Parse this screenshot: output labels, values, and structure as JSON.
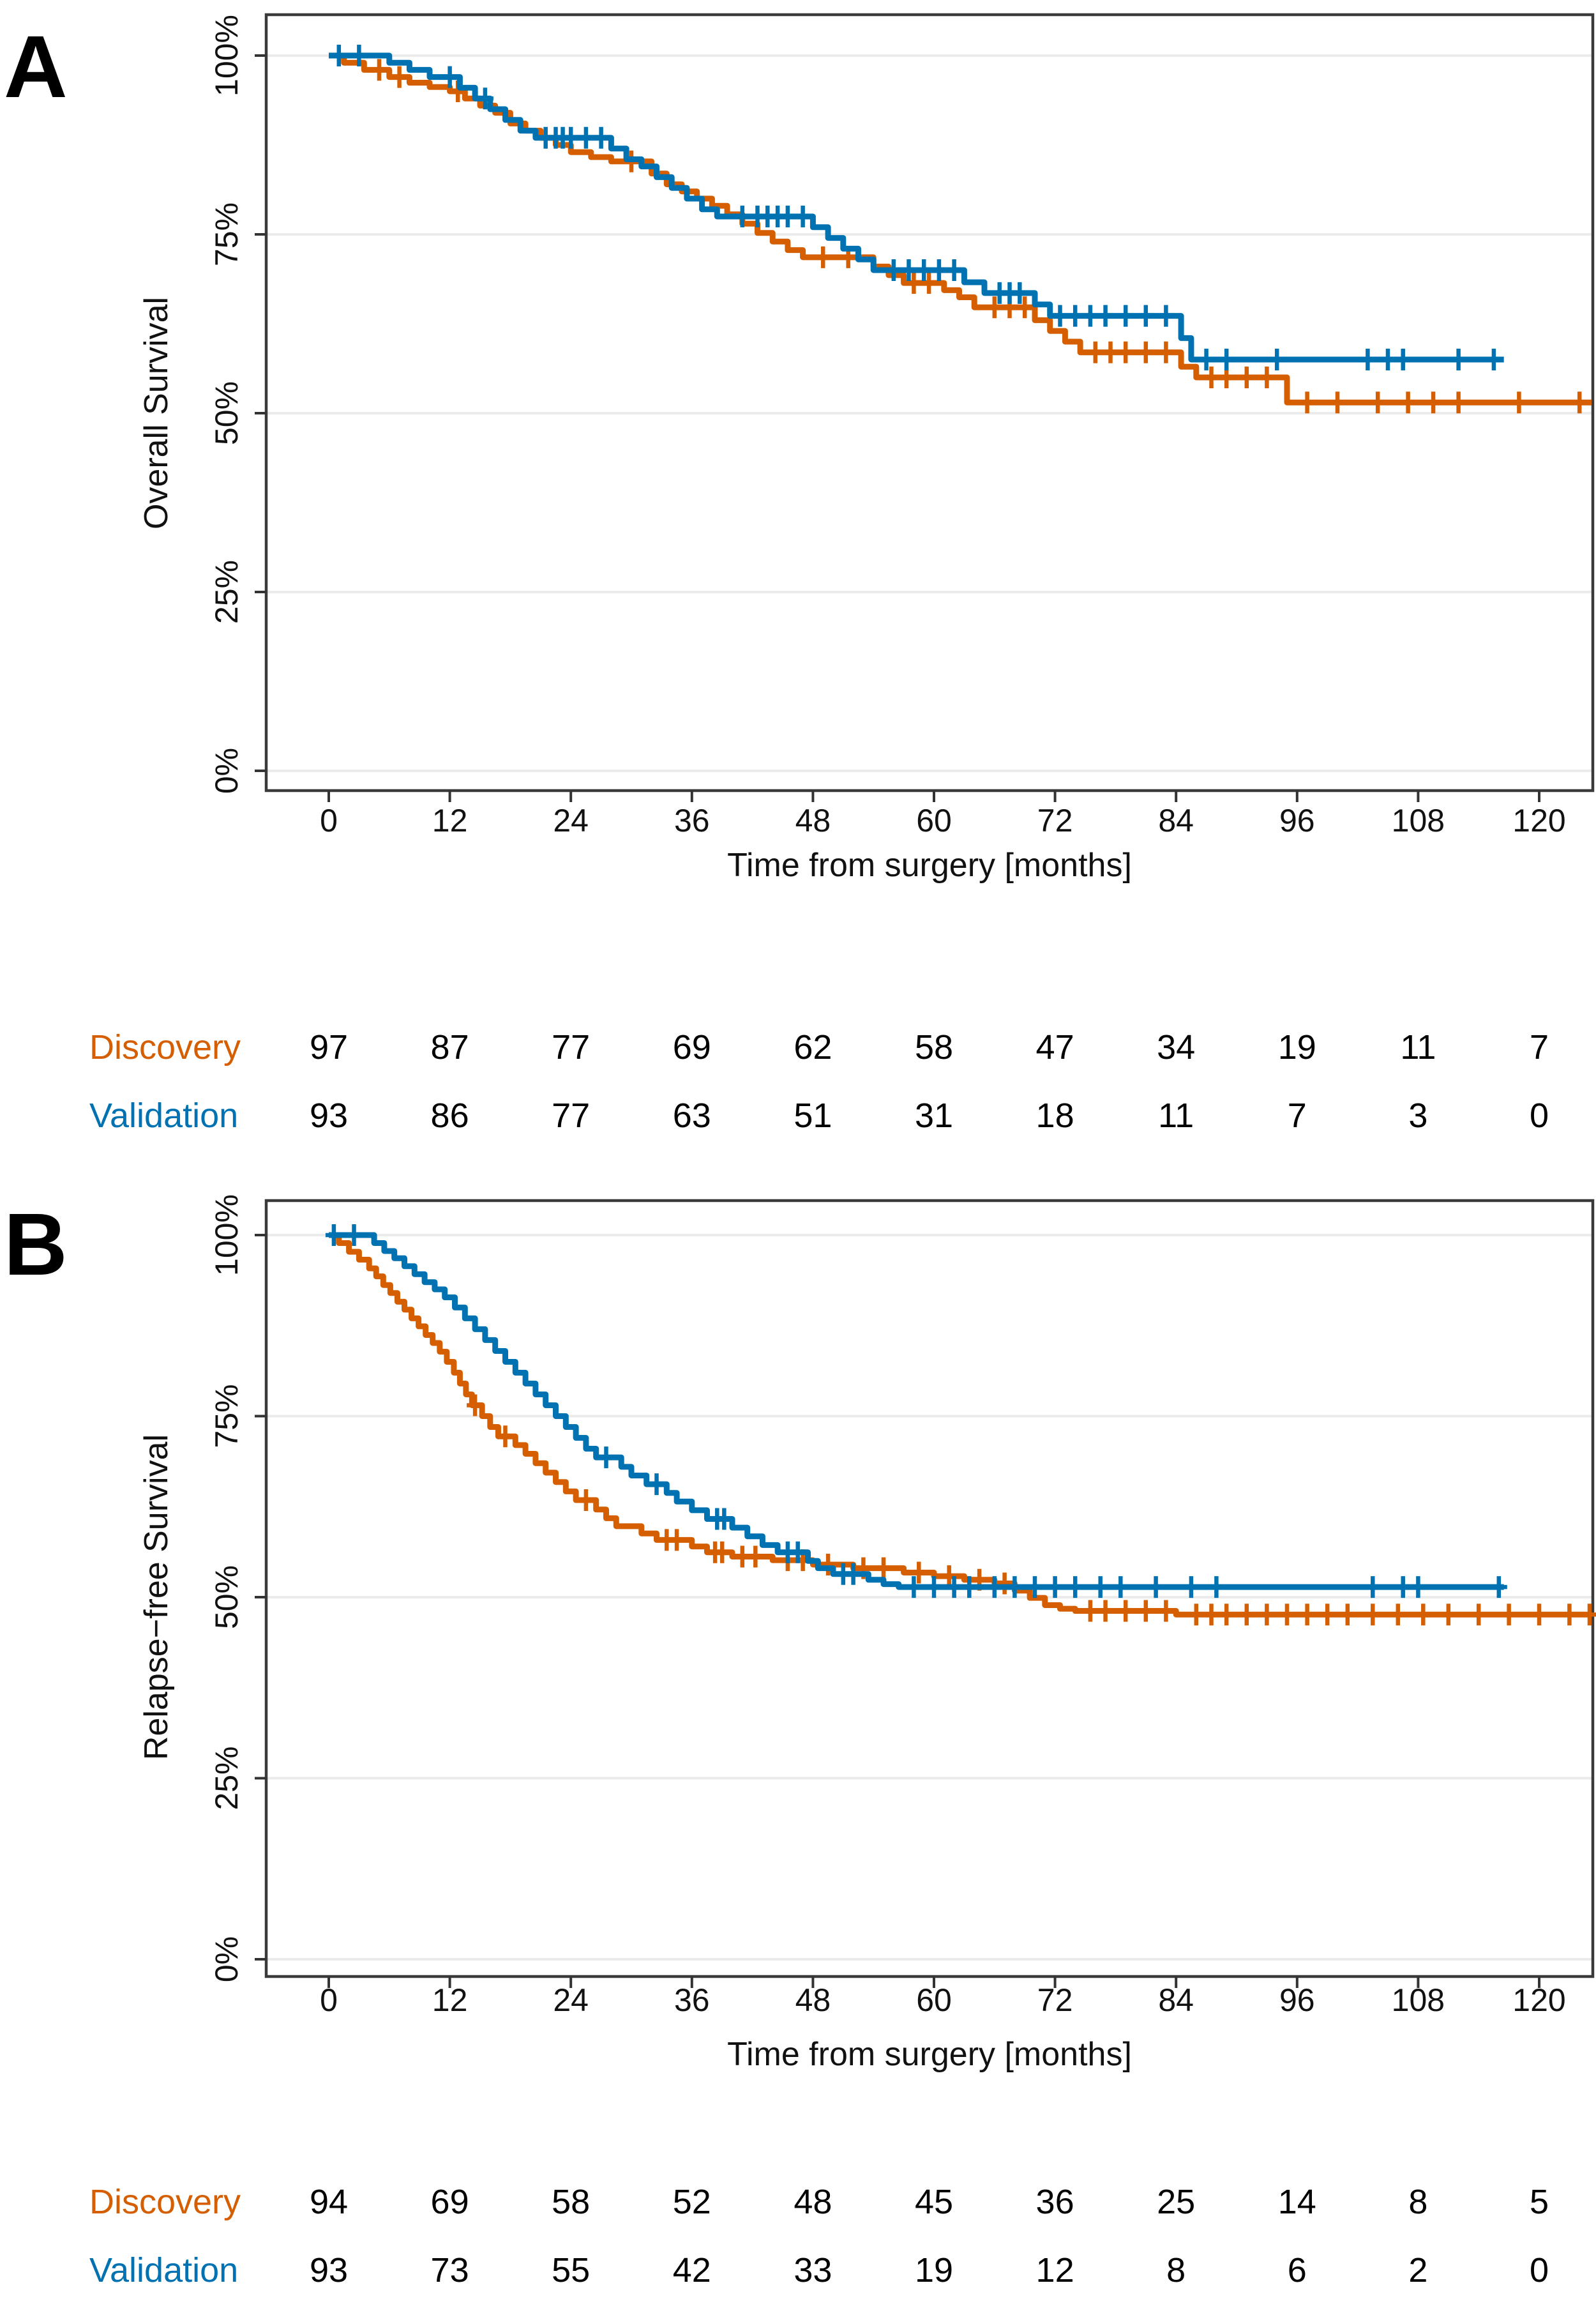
{
  "chart_data": [
    {
      "type": "line",
      "subtype": "kaplan-meier-step",
      "panel_letter": "A",
      "xlabel": "Time from surgery [months]",
      "ylabel": "Overall Survival",
      "x_ticks": [
        0,
        12,
        24,
        36,
        48,
        60,
        72,
        84,
        96,
        108,
        120
      ],
      "y_ticks": [
        {
          "p": 0,
          "label": "0%"
        },
        {
          "p": 25,
          "label": "25%"
        },
        {
          "p": 50,
          "label": "50%"
        },
        {
          "p": 75,
          "label": "75%"
        },
        {
          "p": 100,
          "label": "100%"
        }
      ],
      "xlim": [
        -6.2,
        125.3
      ],
      "ylim": [
        0,
        100
      ],
      "grid": "horizontal",
      "series": [
        {
          "name": "Discovery",
          "color": "#D55E00",
          "steps": [
            [
              0,
              100
            ],
            [
              1.5,
              99
            ],
            [
              3.5,
              98
            ],
            [
              6,
              97
            ],
            [
              8,
              96.2
            ],
            [
              10,
              95.6
            ],
            [
              12,
              95
            ],
            [
              13.5,
              94
            ],
            [
              15,
              93
            ],
            [
              16.5,
              92
            ],
            [
              18,
              90.5
            ],
            [
              19.5,
              89.5
            ],
            [
              21,
              88.5
            ],
            [
              22.5,
              87.5
            ],
            [
              24,
              86.5
            ],
            [
              26,
              85.8
            ],
            [
              28,
              85.2
            ],
            [
              32,
              83.5
            ],
            [
              33.5,
              82
            ],
            [
              35,
              81
            ],
            [
              36.5,
              80
            ],
            [
              38,
              79
            ],
            [
              39.5,
              77.8
            ],
            [
              41,
              76.5
            ],
            [
              42.5,
              75.2
            ],
            [
              44,
              74
            ],
            [
              45.5,
              72.8
            ],
            [
              47,
              71.8
            ],
            [
              54,
              70.5
            ],
            [
              55.5,
              69.3
            ],
            [
              57,
              68.2
            ],
            [
              61,
              67.2
            ],
            [
              62.5,
              66.2
            ],
            [
              64,
              64.8
            ],
            [
              70,
              63
            ],
            [
              71.5,
              61.5
            ],
            [
              73,
              60
            ],
            [
              74.5,
              58.5
            ],
            [
              84.5,
              56.5
            ],
            [
              86,
              55
            ],
            [
              95,
              51.5
            ]
          ],
          "end": 125.2,
          "censors": [
            5,
            7,
            12.8,
            30,
            49,
            51.5,
            58,
            59.5,
            66,
            67.5,
            69,
            76,
            77.5,
            79,
            81,
            83,
            87.5,
            89,
            91,
            93,
            97,
            100,
            104,
            107,
            109.5,
            112,
            118,
            124
          ]
        },
        {
          "name": "Validation",
          "color": "#0072B2",
          "steps": [
            [
              0,
              100
            ],
            [
              6,
              99
            ],
            [
              8,
              98
            ],
            [
              10,
              97
            ],
            [
              13,
              95.5
            ],
            [
              14.5,
              94
            ],
            [
              16,
              92.5
            ],
            [
              17.5,
              91
            ],
            [
              19,
              89.5
            ],
            [
              20.5,
              88.5
            ],
            [
              28,
              87
            ],
            [
              29.5,
              85.5
            ],
            [
              31,
              84.5
            ],
            [
              32.5,
              83
            ],
            [
              34,
              81.5
            ],
            [
              35.5,
              80
            ],
            [
              37,
              78.5
            ],
            [
              38.5,
              77.5
            ],
            [
              48,
              76
            ],
            [
              49.5,
              74.5
            ],
            [
              51,
              73
            ],
            [
              52.5,
              71.5
            ],
            [
              54,
              70
            ],
            [
              63,
              68.3
            ],
            [
              65,
              66.8
            ],
            [
              70,
              65.2
            ],
            [
              71.5,
              63.6
            ],
            [
              84.5,
              60.5
            ],
            [
              85.5,
              57.5
            ]
          ],
          "end": 116.5,
          "censors": [
            1,
            3,
            12,
            15.5,
            21.5,
            22.5,
            23.2,
            24,
            25.5,
            27,
            41,
            42.5,
            43.5,
            44.5,
            45.5,
            47,
            56,
            57.5,
            59,
            60.5,
            62,
            66.5,
            67.5,
            68.5,
            72.5,
            74,
            75.5,
            77,
            79,
            81,
            83,
            87,
            89,
            94,
            103,
            105,
            106.5,
            112,
            115.5
          ]
        }
      ],
      "risk_table": {
        "rows": [
          {
            "label": "Discovery",
            "color": "#D55E00",
            "values": [
              "97",
              "87",
              "77",
              "69",
              "62",
              "58",
              "47",
              "34",
              "19",
              "11",
              "7"
            ]
          },
          {
            "label": "Validation",
            "color": "#0072B2",
            "values": [
              "93",
              "86",
              "77",
              "63",
              "51",
              "31",
              "18",
              "11",
              "7",
              "3",
              "0"
            ]
          }
        ]
      }
    },
    {
      "type": "line",
      "subtype": "kaplan-meier-step",
      "panel_letter": "B",
      "xlabel": "Time from surgery [months]",
      "ylabel": "Relapse−free Survival",
      "x_ticks": [
        0,
        12,
        24,
        36,
        48,
        60,
        72,
        84,
        96,
        108,
        120
      ],
      "y_ticks": [
        {
          "p": 0,
          "label": "0%"
        },
        {
          "p": 25,
          "label": "25%"
        },
        {
          "p": 50,
          "label": "50%"
        },
        {
          "p": 75,
          "label": "75%"
        },
        {
          "p": 100,
          "label": "100%"
        }
      ],
      "xlim": [
        -6.2,
        125.3
      ],
      "ylim": [
        0,
        100
      ],
      "grid": "horizontal",
      "series": [
        {
          "name": "Discovery",
          "color": "#D55E00",
          "steps": [
            [
              0,
              100
            ],
            [
              1,
              98.9
            ],
            [
              2,
              97.7
            ],
            [
              3,
              96.6
            ],
            [
              4,
              95.4
            ],
            [
              4.7,
              94.3
            ],
            [
              5.4,
              93.1
            ],
            [
              6.1,
              92
            ],
            [
              6.8,
              90.8
            ],
            [
              7.5,
              89.7
            ],
            [
              8.2,
              88.5
            ],
            [
              8.9,
              87.4
            ],
            [
              9.6,
              86.2
            ],
            [
              10.3,
              85.1
            ],
            [
              11,
              83.9
            ],
            [
              11.7,
              82.5
            ],
            [
              12.4,
              81
            ],
            [
              13,
              79.5
            ],
            [
              13.6,
              78
            ],
            [
              14.2,
              76.5
            ],
            [
              15.2,
              75
            ],
            [
              16,
              73.5
            ],
            [
              16.8,
              72.2
            ],
            [
              18.5,
              71
            ],
            [
              19.5,
              69.8
            ],
            [
              20.5,
              68.5
            ],
            [
              21.5,
              67.2
            ],
            [
              22.5,
              65.9
            ],
            [
              23.5,
              64.6
            ],
            [
              24.5,
              63.4
            ],
            [
              26.5,
              62.1
            ],
            [
              27.5,
              60.9
            ],
            [
              28.5,
              59.8
            ],
            [
              31,
              58.8
            ],
            [
              32.5,
              57.9
            ],
            [
              36,
              57
            ],
            [
              37.5,
              56.2
            ],
            [
              40,
              55.6
            ],
            [
              44,
              55.1
            ],
            [
              48,
              54.5
            ],
            [
              52,
              54
            ],
            [
              57,
              53.4
            ],
            [
              60,
              52.9
            ],
            [
              63,
              52.4
            ],
            [
              66,
              51.9
            ],
            [
              68,
              50.9
            ],
            [
              69.5,
              49.9
            ],
            [
              71,
              48.9
            ],
            [
              72.5,
              48.4
            ],
            [
              74,
              48.1
            ],
            [
              84,
              47.6
            ]
          ],
          "end": 125.2,
          "censors": [
            14.5,
            17.5,
            25.5,
            33.5,
            34.5,
            38.3,
            39,
            41,
            42.3,
            45.5,
            47,
            49.5,
            53,
            55,
            58.5,
            61.5,
            64.5,
            67,
            75.5,
            77,
            79,
            81,
            83,
            86,
            87.5,
            89,
            91,
            93,
            95,
            97,
            99,
            101,
            103.5,
            106,
            108.5,
            111,
            114,
            117,
            120,
            123,
            125
          ]
        },
        {
          "name": "Validation",
          "color": "#0072B2",
          "steps": [
            [
              0,
              100
            ],
            [
              4.5,
              98.9
            ],
            [
              5.5,
              97.8
            ],
            [
              6.5,
              96.8
            ],
            [
              7.5,
              95.7
            ],
            [
              8.5,
              94.6
            ],
            [
              9.5,
              93.5
            ],
            [
              10.5,
              92.5
            ],
            [
              11.5,
              91.4
            ],
            [
              12.5,
              90
            ],
            [
              13.5,
              88.5
            ],
            [
              14.5,
              87
            ],
            [
              15.5,
              85.5
            ],
            [
              16.5,
              84
            ],
            [
              17.5,
              82.5
            ],
            [
              18.5,
              81
            ],
            [
              19.5,
              79.5
            ],
            [
              20.5,
              78
            ],
            [
              21.5,
              76.5
            ],
            [
              22.5,
              75
            ],
            [
              23.5,
              73.5
            ],
            [
              24.5,
              72
            ],
            [
              25.5,
              70.5
            ],
            [
              26.5,
              69.3
            ],
            [
              29,
              68
            ],
            [
              30,
              66.8
            ],
            [
              31.5,
              65.6
            ],
            [
              33.5,
              64.4
            ],
            [
              34.5,
              63.2
            ],
            [
              36,
              62
            ],
            [
              37.5,
              60.8
            ],
            [
              40,
              59.6
            ],
            [
              41.5,
              58.4
            ],
            [
              43,
              57.2
            ],
            [
              44.5,
              56.2
            ],
            [
              47.5,
              55
            ],
            [
              48.5,
              54
            ],
            [
              50,
              53.2
            ],
            [
              53.5,
              52.4
            ],
            [
              55,
              51.8
            ],
            [
              56.5,
              51.4
            ]
          ],
          "end": 116.5,
          "censors": [
            0.5,
            2.5,
            27.5,
            32.5,
            38.5,
            39.2,
            45.5,
            46.5,
            51,
            52,
            58,
            60,
            62,
            63.5,
            66,
            68,
            70,
            72,
            74,
            76.5,
            78.5,
            82,
            85.5,
            88,
            103.5,
            106.5,
            108,
            116
          ]
        }
      ],
      "risk_table": {
        "rows": [
          {
            "label": "Discovery",
            "color": "#D55E00",
            "values": [
              "94",
              "69",
              "58",
              "52",
              "48",
              "45",
              "36",
              "25",
              "14",
              "8",
              "5"
            ]
          },
          {
            "label": "Validation",
            "color": "#0072B2",
            "values": [
              "93",
              "73",
              "55",
              "42",
              "33",
              "19",
              "12",
              "8",
              "6",
              "2",
              "0"
            ]
          }
        ]
      }
    }
  ],
  "style": {
    "border_color": "#3A3A3A",
    "grid_color": "#EBEBEB",
    "tick_color": "#333333",
    "text_color": "#111111"
  }
}
